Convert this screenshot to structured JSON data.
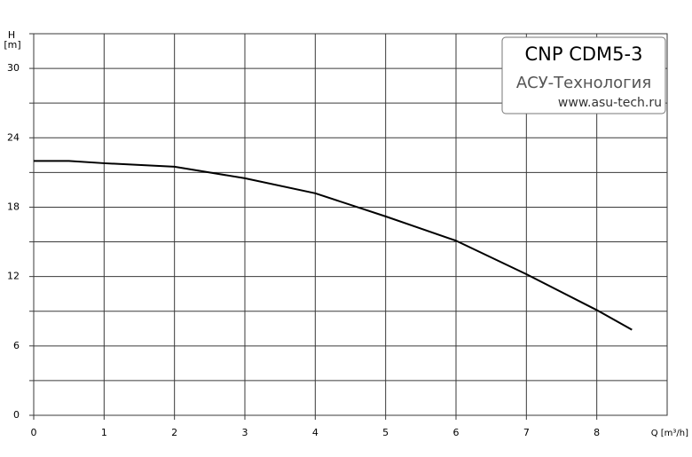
{
  "chart_data": {
    "type": "line",
    "title": "CNP CDM5-3",
    "subtitle": "АСУ-Технология",
    "source": "www.asu-tech.ru",
    "y_label_top": "H",
    "y_label": "[m]",
    "x_label": "Q [m³/h]",
    "xlim": [
      0,
      9
    ],
    "xticks": [
      0,
      1,
      2,
      3,
      4,
      5,
      6,
      7,
      8
    ],
    "ylim": [
      0,
      33
    ],
    "yticks": [
      0,
      6,
      12,
      18,
      24,
      30
    ],
    "y_minor_grid": [
      3,
      9,
      15,
      21,
      27,
      33
    ],
    "grid": true,
    "series": [
      {
        "color": "#000000",
        "x": [
          0,
          0.5,
          1,
          2,
          2.5,
          3,
          4,
          4.6,
          5,
          6,
          7,
          8,
          8.5
        ],
        "values": [
          22,
          22,
          21.8,
          21.5,
          21.0,
          20.5,
          19.2,
          18.0,
          17.2,
          15.1,
          12.2,
          9.1,
          7.4
        ]
      }
    ]
  }
}
